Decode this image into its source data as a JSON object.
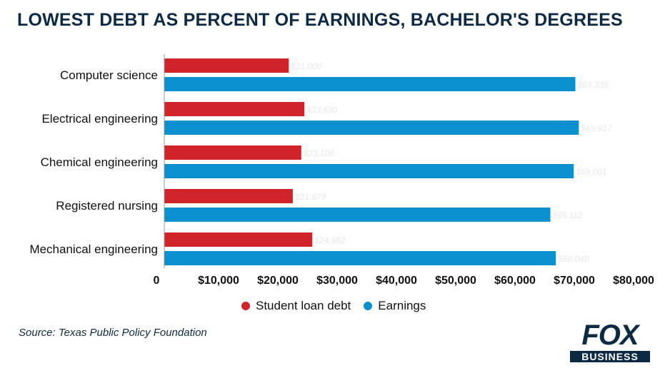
{
  "title": "LOWEST DEBT AS PERCENT OF EARNINGS, BACHELOR'S DEGREES",
  "colors": {
    "debt": "#d1232a",
    "earnings": "#0a8fcf",
    "title": "#0d2a44"
  },
  "chart_data": {
    "type": "bar",
    "orientation": "horizontal",
    "categories": [
      "Computer science",
      "Electrical engineering",
      "Chemical engineering",
      "Registered nursing",
      "Mechanical engineering"
    ],
    "series": [
      {
        "name": "Student loan debt",
        "values": [
          21000,
          23630,
          23106,
          21679,
          24962
        ],
        "labels": [
          "$21,000",
          "$23,630",
          "$23,106",
          "$21,679",
          "$24,962"
        ]
      },
      {
        "name": "Earnings",
        "values": [
          69338,
          69917,
          69061,
          65112,
          66040
        ],
        "labels": [
          "$69,338",
          "$69,917",
          "$69,061",
          "$65,112",
          "$66,040"
        ]
      }
    ],
    "xticks": [
      "0",
      "$10,000",
      "$20,000",
      "$30,000",
      "$40,000",
      "$50,000",
      "$60,000",
      "$70,000",
      "$80,000"
    ],
    "xlim": [
      0,
      80000
    ],
    "grid": false,
    "legend": "bottom-center"
  },
  "legend": {
    "debt_label": "Student loan debt",
    "earnings_label": "Earnings"
  },
  "source": "Source: Texas Public Policy Foundation",
  "logo": {
    "top": "FOX",
    "bottom": "BUSINESS"
  }
}
